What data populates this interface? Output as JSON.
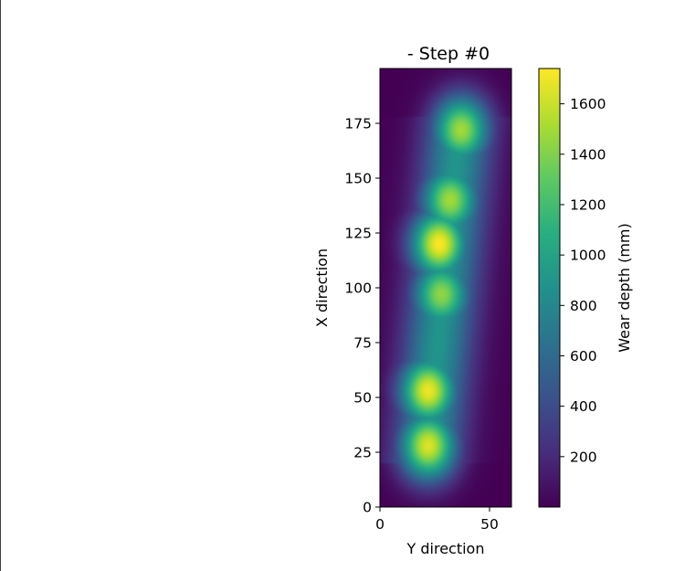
{
  "chart_data": {
    "type": "heatmap",
    "title": "- Step #0",
    "xlabel": "Y direction",
    "ylabel": "X direction",
    "xlim": [
      0,
      60
    ],
    "ylim": [
      0,
      200
    ],
    "x_ticks": [
      0,
      50
    ],
    "y_ticks": [
      0,
      25,
      50,
      75,
      100,
      125,
      150,
      175
    ],
    "colormap": "viridis",
    "colorbar": {
      "label": "Wear depth (mm)",
      "range": [
        0,
        1740
      ],
      "ticks": [
        200,
        400,
        600,
        800,
        1000,
        1200,
        1400,
        1600
      ]
    },
    "hotspots": [
      {
        "x": 22,
        "y": 28,
        "peak": 1650
      },
      {
        "x": 22,
        "y": 53,
        "peak": 1700
      },
      {
        "x": 27,
        "y": 120,
        "peak": 1740
      },
      {
        "x": 28,
        "y": 97,
        "peak": 1450
      },
      {
        "x": 32,
        "y": 140,
        "peak": 1500
      },
      {
        "x": 37,
        "y": 172,
        "peak": 1500
      }
    ]
  }
}
